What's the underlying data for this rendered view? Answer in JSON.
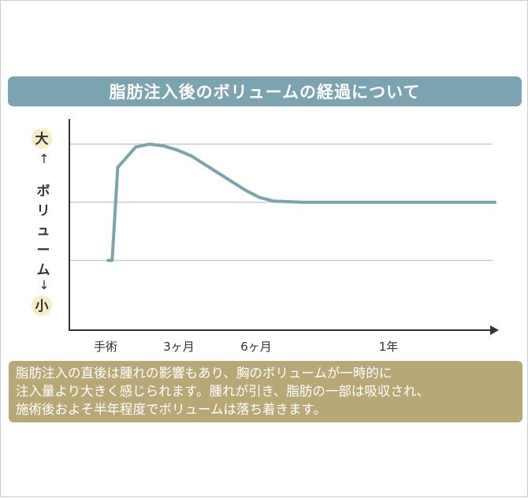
{
  "title": "脂肪注入後のボリュームの経過について",
  "chart_data": {
    "type": "line",
    "title": "脂肪注入後のボリュームの経過について",
    "ylabel": "ボリューム",
    "y_top_label": "大",
    "y_bottom_label": "小",
    "arrow_up": "↑",
    "arrow_down": "↓",
    "x_tick_labels": [
      "手術",
      "3ヶ月",
      "6ヶ月",
      "1年"
    ],
    "grid": true,
    "x": [
      0,
      0.15,
      0.35,
      1,
      1.5,
      2,
      2.5,
      3,
      3.5,
      4,
      4.5,
      5,
      5.5,
      6,
      7,
      8,
      9,
      10,
      11,
      12,
      13,
      14
    ],
    "y": [
      1,
      1,
      2.6,
      2.95,
      3,
      2.97,
      2.9,
      2.8,
      2.65,
      2.5,
      2.35,
      2.2,
      2.08,
      2.02,
      2,
      2,
      2,
      2,
      2,
      2,
      2,
      2
    ],
    "xlim": [
      -1.4,
      14.2
    ],
    "ylim": [
      -0.2,
      3.5
    ],
    "color": "#7ba4ae"
  },
  "note": {
    "lines": [
      "脂肪注入の直後は腫れの影響もあり、胸のボリュームが一時的に",
      "注入量より大きく感じられます。腫れが引き、脂肪の一部は吸収され、",
      "施術後およそ半年程度でボリュームは落ち着きます。"
    ]
  },
  "colors": {
    "title_bg": "#7ca4b0",
    "note_bg": "#b8a878",
    "label_circle": "#f6ecc8",
    "axis": "#333333",
    "grid": "#cccccc"
  }
}
